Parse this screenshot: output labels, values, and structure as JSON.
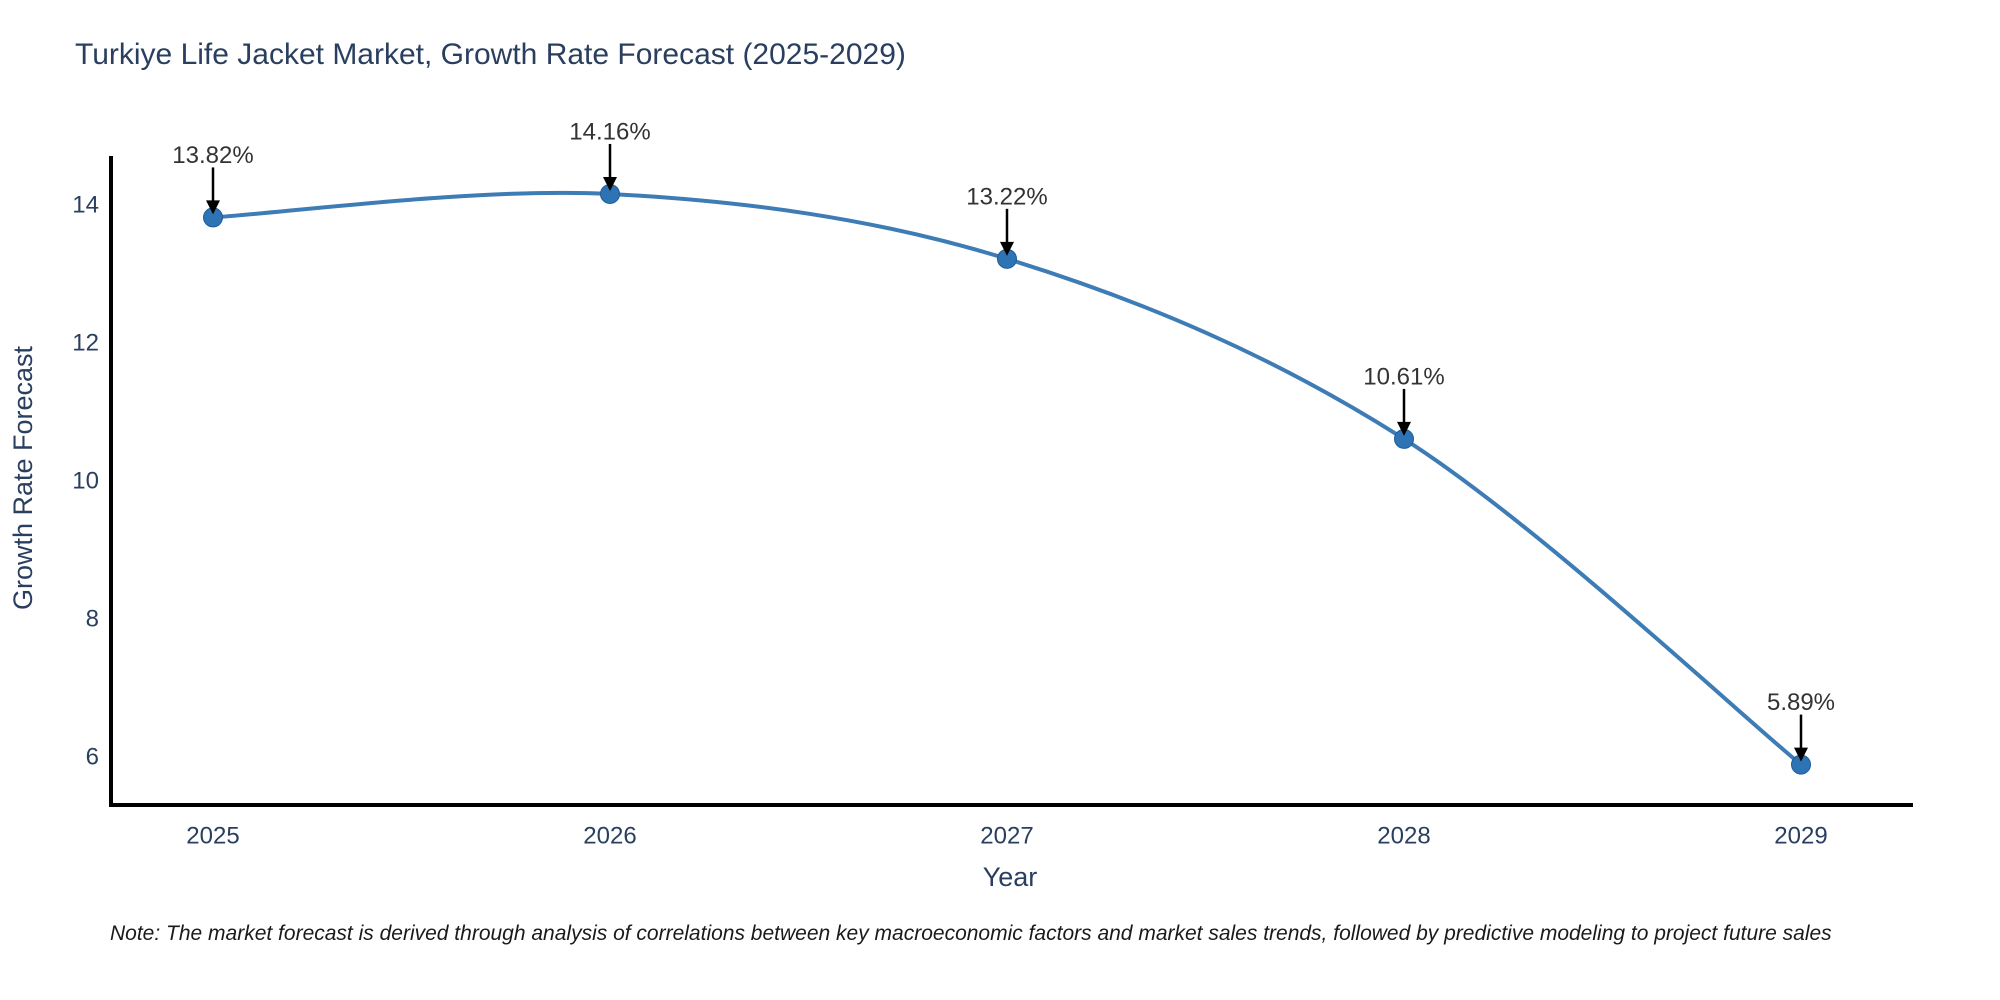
{
  "chart_data": {
    "type": "line",
    "title": "Turkiye Life Jacket Market, Growth Rate Forecast (2025-2029)",
    "x": [
      "2025",
      "2026",
      "2027",
      "2028",
      "2029"
    ],
    "values": [
      13.82,
      14.16,
      13.22,
      10.61,
      5.89
    ],
    "point_labels": [
      "13.82%",
      "14.16%",
      "13.22%",
      "10.61%",
      "5.89%"
    ],
    "xlabel": "Year",
    "ylabel": "Growth Rate Forecast",
    "y_ticks": [
      14,
      12,
      10,
      8,
      6
    ],
    "ylim": [
      5.3,
      14.7
    ],
    "grid": false,
    "legend": "none",
    "line_shape": "spline",
    "annotation_style": "down-arrow",
    "colors": {
      "line": "#3d7cb5",
      "marker": "#2e74b5",
      "marker_edge": "#1f5c96",
      "axis": "#000000",
      "text": "#2a3f5f",
      "annotation": "#333333",
      "note": "#1a1a1a",
      "background": "#ffffff"
    },
    "note": "Note: The market forecast is derived through analysis of correlations between key macroeconomic factors and market sales trends, followed by predictive modeling to project future sales"
  }
}
